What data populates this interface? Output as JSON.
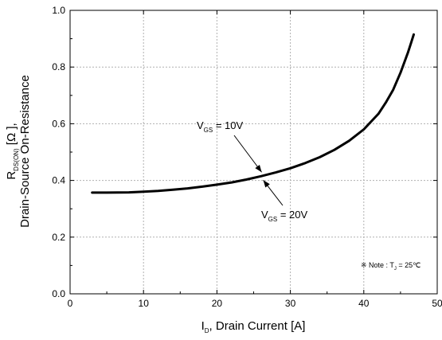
{
  "chart_data": {
    "type": "line",
    "xlabel": {
      "main": "I",
      "sub": "D",
      "rest": ", Drain Current [A]"
    },
    "ylabel": {
      "line1_main": "R",
      "line1_sub": "DS(ON)",
      "line1_rest": " [Ω ],",
      "line2": "Drain-Source On-Resistance"
    },
    "xlim": [
      0,
      50
    ],
    "ylim": [
      0.0,
      1.0
    ],
    "xticks": [
      0,
      10,
      20,
      30,
      40,
      50
    ],
    "yticks": [
      0.0,
      0.2,
      0.4,
      0.6,
      0.8,
      1.0
    ],
    "ytick_labels": [
      "0.0",
      "0.2",
      "0.4",
      "0.6",
      "0.8",
      "1.0"
    ],
    "grid": true,
    "series": [
      {
        "x": [
          3,
          5,
          8,
          10,
          12,
          14,
          16,
          18,
          20,
          22,
          24,
          26,
          28,
          30,
          32,
          34,
          36,
          38,
          40,
          42,
          43,
          44,
          45,
          46,
          46.5,
          46.8
        ],
        "y": [
          0.357,
          0.357,
          0.358,
          0.36,
          0.363,
          0.367,
          0.372,
          0.378,
          0.385,
          0.393,
          0.403,
          0.415,
          0.428,
          0.443,
          0.461,
          0.482,
          0.508,
          0.54,
          0.58,
          0.635,
          0.675,
          0.72,
          0.78,
          0.85,
          0.89,
          0.915
        ]
      }
    ],
    "annotations": [
      {
        "main": "V",
        "sub": "GS",
        "rest": " = 10V",
        "x": 26.2,
        "y": 0.415
      },
      {
        "main": "V",
        "sub": "GS",
        "rest": " = 20V",
        "x": 26.2,
        "y": 0.415
      }
    ],
    "note": {
      "prefix": "※ Note : T",
      "sub": "J",
      "rest": " = 25℃"
    },
    "colors": {
      "line": "#000000",
      "grid": "#b0b0b0",
      "axis": "#000000"
    }
  }
}
